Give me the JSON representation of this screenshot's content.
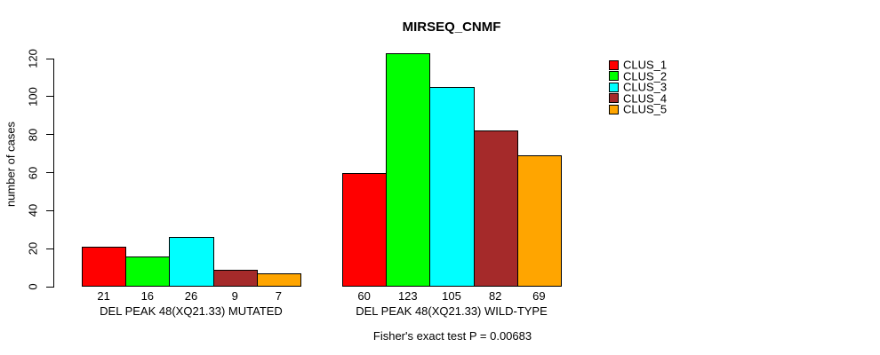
{
  "chart_data": {
    "type": "bar",
    "title": "MIRSEQ_CNMF",
    "ylabel": "number of cases",
    "xlabel": "",
    "annotation": "Fisher's exact test P = 0.00683",
    "categories": [
      "DEL PEAK 48(XQ21.33) MUTATED",
      "DEL PEAK 48(XQ21.33) WILD-TYPE"
    ],
    "series": [
      {
        "name": "CLUS_1",
        "color": "#FF0000",
        "values": [
          21,
          60
        ]
      },
      {
        "name": "CLUS_2",
        "color": "#00FF00",
        "values": [
          16,
          123
        ]
      },
      {
        "name": "CLUS_3",
        "color": "#00FFFF",
        "values": [
          26,
          105
        ]
      },
      {
        "name": "CLUS_4",
        "color": "#A52A2A",
        "values": [
          9,
          82
        ]
      },
      {
        "name": "CLUS_5",
        "color": "#FFA500",
        "values": [
          7,
          69
        ]
      }
    ],
    "bar_value_labels": [
      [
        21,
        16,
        26,
        9,
        7
      ],
      [
        60,
        123,
        105,
        82,
        69
      ]
    ],
    "ylim": [
      0,
      120
    ],
    "yticks": [
      0,
      20,
      40,
      60,
      80,
      100,
      120
    ],
    "grid": false,
    "legend_position": "top-right",
    "bar_border_color": "#000000"
  }
}
